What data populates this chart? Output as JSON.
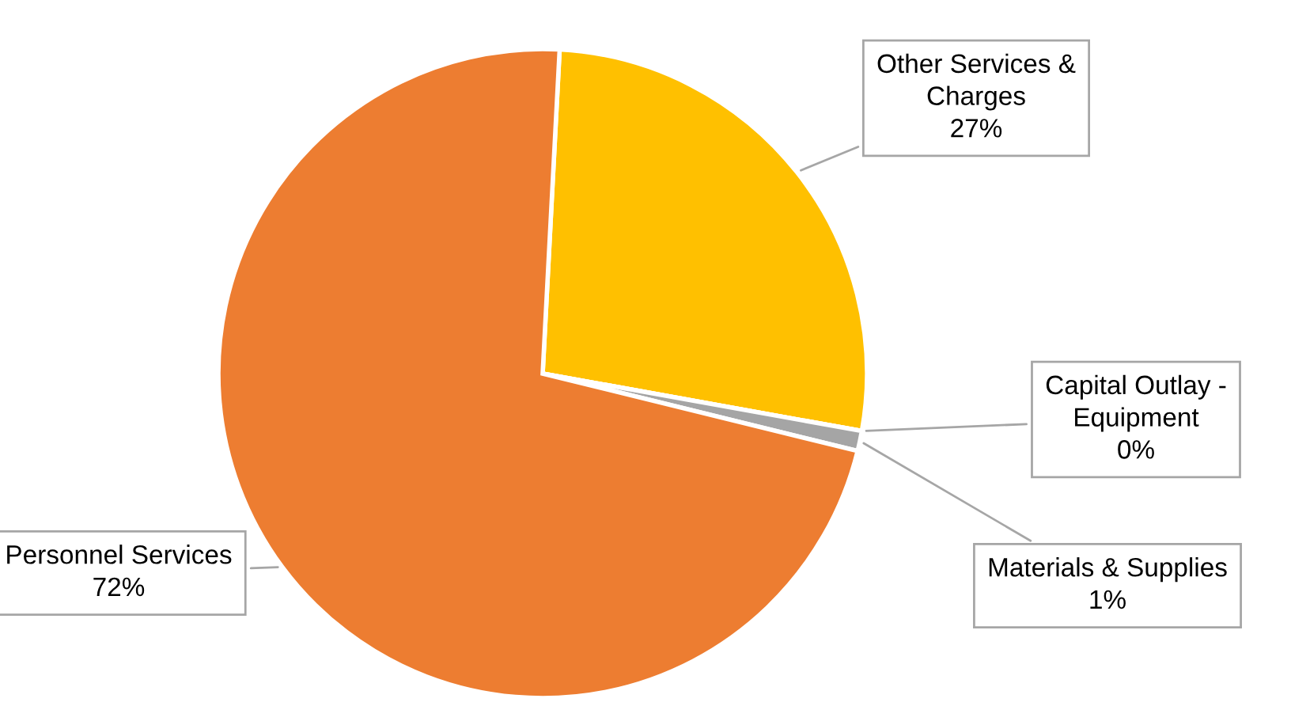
{
  "chart_data": {
    "type": "pie",
    "categories": [
      "Other Services & Charges",
      "Capital Outlay - Equipment",
      "Materials & Supplies",
      "Personnel Services"
    ],
    "values": [
      27,
      0,
      1,
      72
    ],
    "colors": [
      "#ffc000",
      "#70ad47",
      "#a5a5a5",
      "#ed7d31"
    ],
    "value_labels": [
      "27%",
      "0%",
      "1%",
      "72%"
    ],
    "legend": false
  }
}
